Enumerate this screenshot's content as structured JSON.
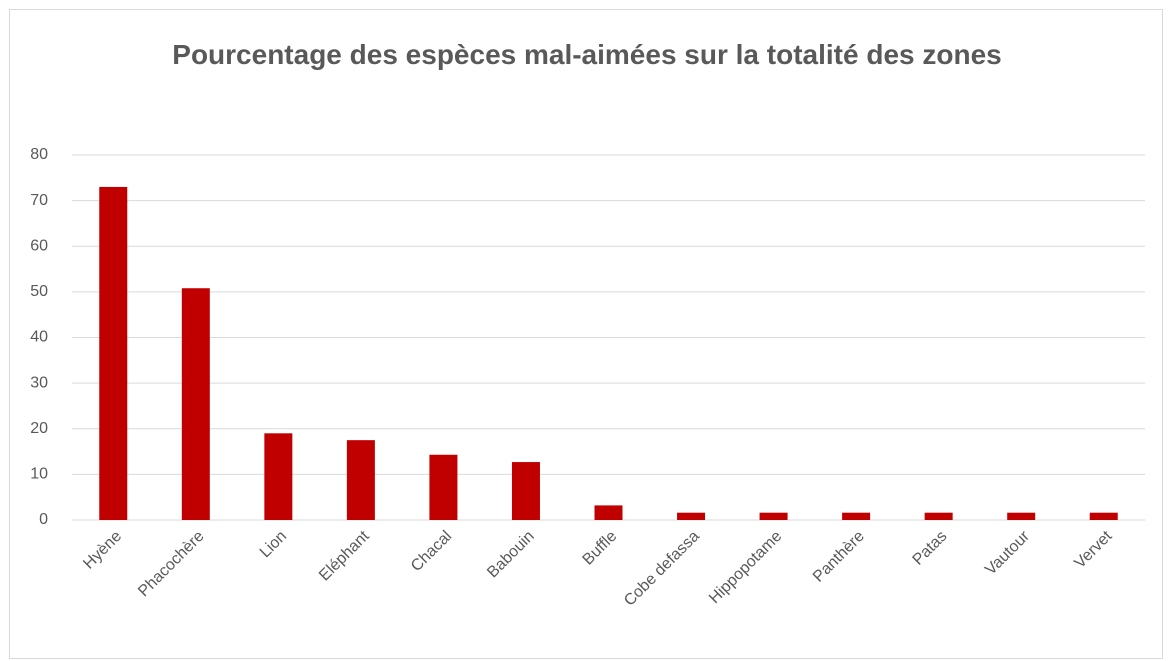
{
  "chart_data": {
    "type": "bar",
    "title": "Pourcentage des espèces mal-aimées sur la totalité des zones",
    "categories": [
      "Hyène",
      "Phacochère",
      "Lion",
      "Eléphant",
      "Chacal",
      "Babouin",
      "Buffle",
      "Cobe defassa",
      "Hippopotame",
      "Panthère",
      "Patas",
      "Vautour",
      "Vervet"
    ],
    "values": [
      73,
      50.8,
      19,
      17.5,
      14.3,
      12.7,
      3.2,
      1.6,
      1.6,
      1.6,
      1.6,
      1.6,
      1.6
    ],
    "color": "#c00000",
    "ylim": [
      0,
      80
    ],
    "yticks": [
      0,
      10,
      20,
      30,
      40,
      50,
      60,
      70,
      80
    ],
    "grid": true
  }
}
